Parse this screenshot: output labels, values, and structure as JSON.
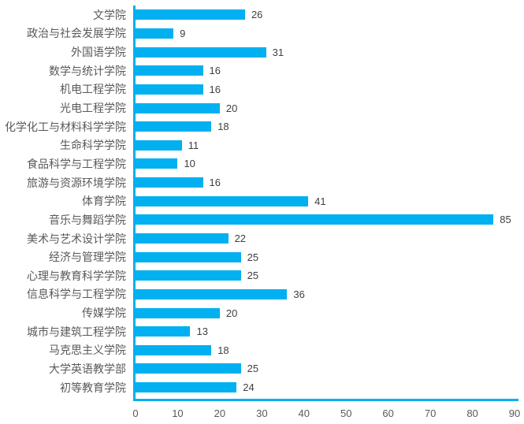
{
  "chart_data": {
    "type": "bar",
    "orientation": "horizontal",
    "title": "",
    "xlabel": "",
    "ylabel": "",
    "categories": [
      "文学院",
      "政治与社会发展学院",
      "外国语学院",
      "数学与统计学院",
      "机电工程学院",
      "光电工程学院",
      "化学化工与材料科学学院",
      "生命科学学院",
      "食品科学与工程学院",
      "旅游与资源环境学院",
      "体育学院",
      "音乐与舞蹈学院",
      "美术与艺术设计学院",
      "经济与管理学院",
      "心理与教育科学学院",
      "信息科学与工程学院",
      "传媒学院",
      "城市与建筑工程学院",
      "马克思主义学院",
      "大学英语教学部",
      "初等教育学院"
    ],
    "values": [
      26,
      9,
      31,
      16,
      16,
      20,
      18,
      11,
      10,
      16,
      41,
      85,
      22,
      25,
      25,
      36,
      20,
      13,
      18,
      25,
      24
    ],
    "xlim": [
      0,
      90
    ],
    "xticks": [
      0,
      10,
      20,
      30,
      40,
      50,
      60,
      70,
      80,
      90
    ],
    "grid": false,
    "legend": "none",
    "value_labels": true,
    "colors": {
      "bar": "#00b0f0",
      "axis": "#00b0f0",
      "category_label": "#595959",
      "value_label": "#404040",
      "tick_label": "#595959",
      "background": "#ffffff"
    }
  }
}
